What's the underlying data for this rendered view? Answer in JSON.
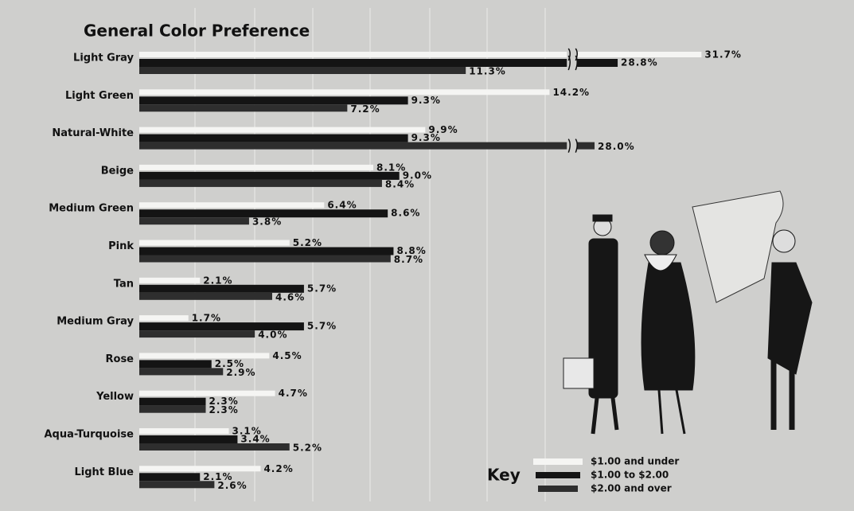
{
  "chart_data": {
    "type": "bar",
    "orientation": "horizontal",
    "title": "General Color Preference",
    "categories": [
      "Light Gray",
      "Light Green",
      "Natural-White",
      "Beige",
      "Medium Green",
      "Pink",
      "Tan",
      "Medium Gray",
      "Rose",
      "Yellow",
      "Aqua-Turquoise",
      "Light Blue"
    ],
    "series": [
      {
        "name": "$1.00 and under",
        "color": "#f5f5f3",
        "values": [
          31.7,
          14.2,
          9.9,
          8.1,
          6.4,
          5.2,
          2.1,
          1.7,
          4.5,
          4.7,
          3.1,
          4.2
        ],
        "value_labels": [
          "31.7%",
          "14.2%",
          "9.9%",
          "8.1%",
          "6.4%",
          "5.2%",
          "2.1%",
          "1.7%",
          "4.5%",
          "4.7%",
          "3.1%",
          "4.2%"
        ]
      },
      {
        "name": "$1.00 to $2.00",
        "color": "#141414",
        "values": [
          28.8,
          9.3,
          9.3,
          9.0,
          8.6,
          8.8,
          5.7,
          5.7,
          2.5,
          2.3,
          3.4,
          2.1
        ],
        "value_labels": [
          "28.8%",
          "9.3%",
          "9.3%",
          "9.0%",
          "8.6%",
          "8.8%",
          "5.7%",
          "5.7%",
          "2.5%",
          "2.3%",
          "3.4%",
          "2.1%"
        ]
      },
      {
        "name": "$2.00 and over",
        "color": "#2e2e2e",
        "values": [
          11.3,
          7.2,
          28.0,
          8.4,
          3.8,
          8.7,
          4.6,
          4.0,
          2.9,
          2.3,
          5.2,
          2.6
        ],
        "value_labels": [
          "11.3%",
          "7.2%",
          "28.0%",
          "8.4%",
          "3.8%",
          "8.7%",
          "4.6%",
          "4.0%",
          "2.9%",
          "2.3%",
          "5.2%",
          "2.6%"
        ]
      }
    ],
    "xlim": [
      0,
      32
    ],
    "x_break": [
      14.8,
      27.4
    ],
    "legend_title": "Key",
    "legend": "lower right"
  }
}
